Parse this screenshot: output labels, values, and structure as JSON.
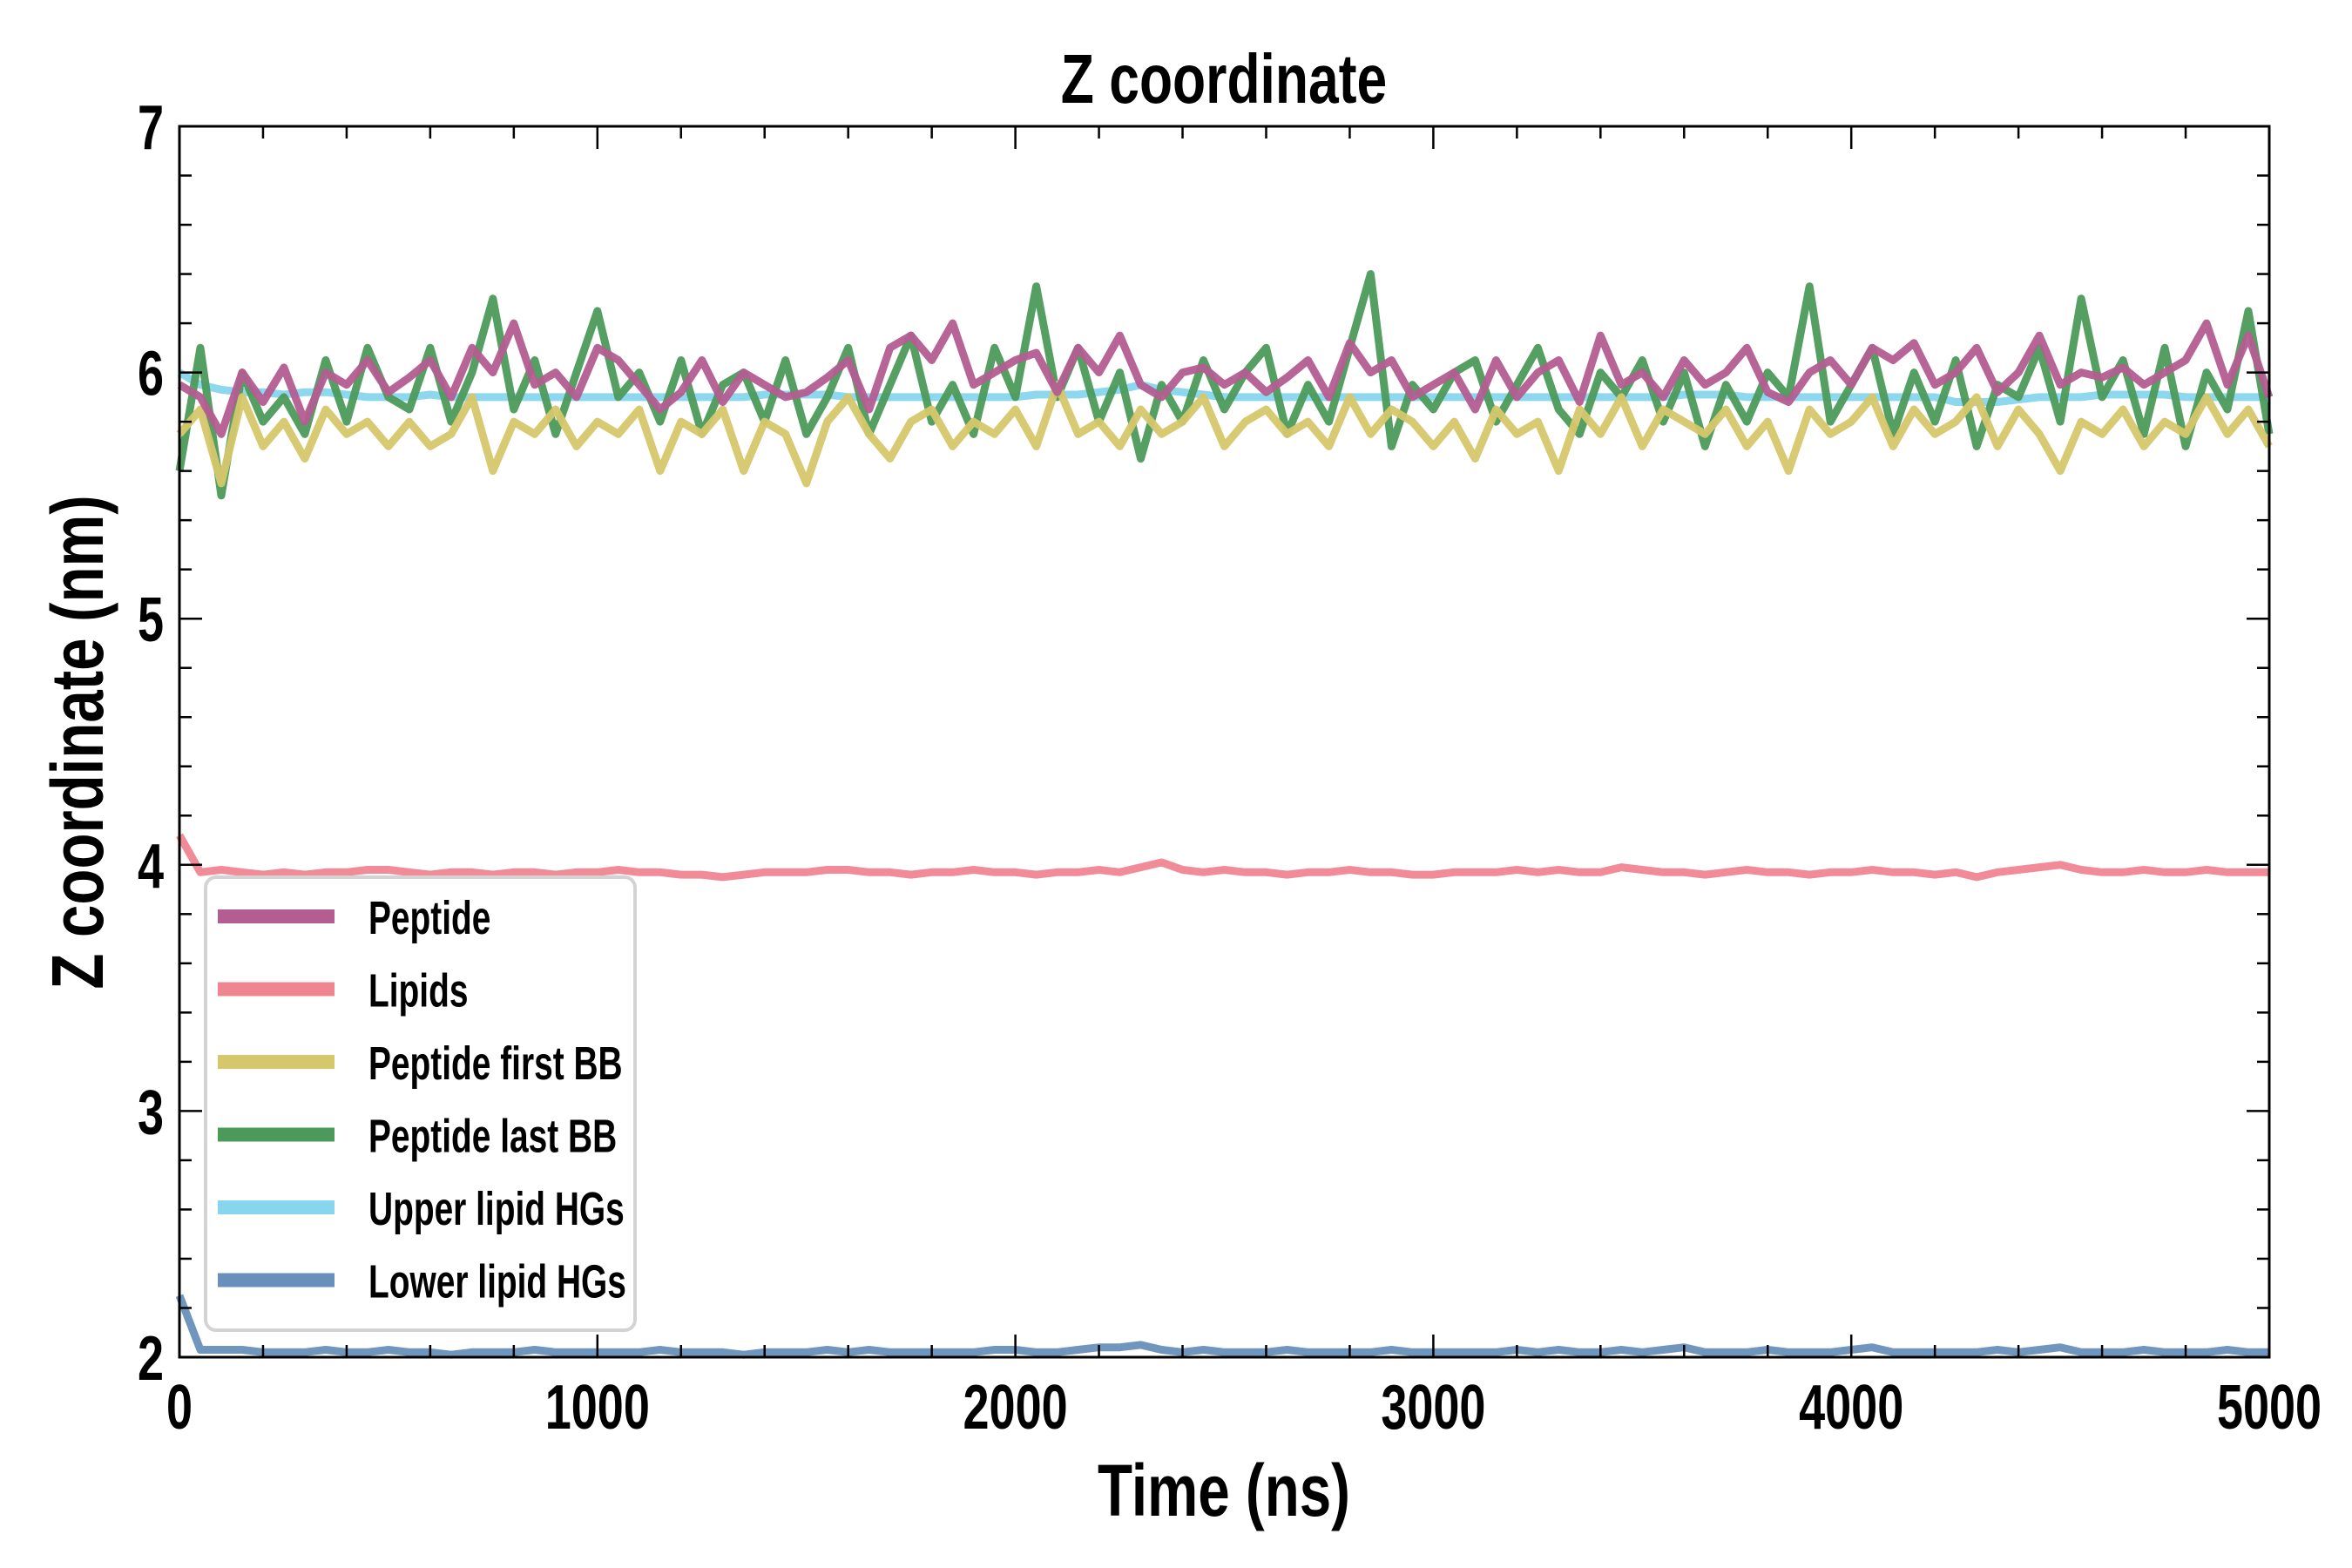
{
  "chart_data": {
    "type": "line",
    "title": "Z coordinate",
    "xlabel": "Time (ns)",
    "ylabel": "Z coordinate (nm)",
    "xlim": [
      0,
      5000
    ],
    "ylim": [
      2,
      7
    ],
    "x_ticks": [
      0,
      1000,
      2000,
      3000,
      4000,
      5000
    ],
    "x_tick_labels": [
      "0",
      "1000",
      "2000",
      "3000",
      "4000",
      "5000"
    ],
    "y_ticks": [
      2,
      3,
      4,
      5,
      6,
      7
    ],
    "y_tick_labels": [
      "2",
      "3",
      "4",
      "5",
      "6",
      "7"
    ],
    "x_minor_step": 200,
    "y_minor_step": 0.2,
    "grid": false,
    "legend_position": "lower-left",
    "x_step": 50,
    "series": [
      {
        "name": "Upper lipid HGs",
        "color": "#88d6ee",
        "values": [
          6.0,
          5.95,
          5.93,
          5.92,
          5.92,
          5.91,
          5.92,
          5.92,
          5.91,
          5.9,
          5.9,
          5.9,
          5.91,
          5.9,
          5.9,
          5.9,
          5.9,
          5.9,
          5.9,
          5.9,
          5.9,
          5.9,
          5.9,
          5.9,
          5.9,
          5.9,
          5.9,
          5.9,
          5.91,
          5.91,
          5.91,
          5.91,
          5.9,
          5.9,
          5.9,
          5.9,
          5.9,
          5.9,
          5.9,
          5.9,
          5.9,
          5.91,
          5.91,
          5.91,
          5.92,
          5.93,
          5.95,
          5.93,
          5.92,
          5.91,
          5.9,
          5.9,
          5.9,
          5.9,
          5.9,
          5.9,
          5.9,
          5.9,
          5.9,
          5.9,
          5.9,
          5.9,
          5.9,
          5.9,
          5.9,
          5.9,
          5.9,
          5.9,
          5.9,
          5.9,
          5.9,
          5.9,
          5.91,
          5.91,
          5.91,
          5.9,
          5.9,
          5.9,
          5.9,
          5.9,
          5.9,
          5.9,
          5.9,
          5.9,
          5.9,
          5.88,
          5.88,
          5.88,
          5.89,
          5.9,
          5.9,
          5.9,
          5.91,
          5.91,
          5.91,
          5.91,
          5.9,
          5.9,
          5.9,
          5.9,
          5.9
        ]
      },
      {
        "name": "Peptide last BB",
        "color": "#4c9a5a",
        "values": [
          5.6,
          6.1,
          5.5,
          6.0,
          5.8,
          5.9,
          5.75,
          6.05,
          5.8,
          6.1,
          5.9,
          5.85,
          6.1,
          5.8,
          6.0,
          6.3,
          5.85,
          6.05,
          5.75,
          6.0,
          6.25,
          5.9,
          6.0,
          5.8,
          6.05,
          5.75,
          5.95,
          6.0,
          5.8,
          6.05,
          5.75,
          5.9,
          6.1,
          5.75,
          5.95,
          6.15,
          5.8,
          5.95,
          5.75,
          6.1,
          5.9,
          6.35,
          5.9,
          6.1,
          5.8,
          6.0,
          5.65,
          5.95,
          5.8,
          6.05,
          5.85,
          6.0,
          6.1,
          5.75,
          5.95,
          5.8,
          6.1,
          6.4,
          5.7,
          5.95,
          5.85,
          6.0,
          6.05,
          5.8,
          5.95,
          6.1,
          5.85,
          5.75,
          6.0,
          5.9,
          6.05,
          5.8,
          6.0,
          5.7,
          5.95,
          5.8,
          6.0,
          5.9,
          6.35,
          5.8,
          5.95,
          6.1,
          5.75,
          6.0,
          5.8,
          6.05,
          5.7,
          5.95,
          5.9,
          6.1,
          5.8,
          6.3,
          5.9,
          6.05,
          5.75,
          6.1,
          5.7,
          6.0,
          5.85,
          6.25,
          5.75
        ]
      },
      {
        "name": "Peptide first BB",
        "color": "#d6c76a",
        "values": [
          5.75,
          5.85,
          5.55,
          5.9,
          5.7,
          5.8,
          5.65,
          5.85,
          5.75,
          5.8,
          5.7,
          5.8,
          5.7,
          5.75,
          5.9,
          5.6,
          5.8,
          5.75,
          5.85,
          5.7,
          5.8,
          5.75,
          5.85,
          5.6,
          5.8,
          5.75,
          5.85,
          5.6,
          5.8,
          5.75,
          5.55,
          5.8,
          5.9,
          5.75,
          5.65,
          5.8,
          5.85,
          5.7,
          5.8,
          5.75,
          5.85,
          5.7,
          5.95,
          5.75,
          5.8,
          5.7,
          5.85,
          5.75,
          5.8,
          5.9,
          5.7,
          5.8,
          5.85,
          5.75,
          5.8,
          5.7,
          5.9,
          5.75,
          5.85,
          5.8,
          5.7,
          5.8,
          5.65,
          5.85,
          5.75,
          5.8,
          5.6,
          5.85,
          5.75,
          5.9,
          5.7,
          5.85,
          5.8,
          5.75,
          5.85,
          5.7,
          5.8,
          5.6,
          5.85,
          5.75,
          5.8,
          5.9,
          5.7,
          5.85,
          5.75,
          5.8,
          5.9,
          5.7,
          5.85,
          5.75,
          5.6,
          5.8,
          5.75,
          5.85,
          5.7,
          5.8,
          5.75,
          5.9,
          5.75,
          5.85,
          5.7
        ]
      },
      {
        "name": "Peptide",
        "color": "#b35d91",
        "values": [
          5.95,
          5.9,
          5.75,
          6.0,
          5.88,
          6.02,
          5.8,
          6.0,
          5.95,
          6.05,
          5.92,
          5.98,
          6.05,
          5.9,
          6.1,
          6.0,
          6.2,
          5.95,
          6.0,
          5.9,
          6.1,
          6.05,
          5.95,
          5.85,
          5.92,
          6.05,
          5.88,
          6.0,
          5.95,
          5.9,
          5.92,
          5.98,
          6.05,
          5.85,
          6.1,
          6.15,
          6.05,
          6.2,
          5.95,
          6.0,
          6.05,
          6.08,
          5.92,
          6.1,
          6.0,
          6.15,
          5.95,
          5.9,
          6.0,
          6.02,
          5.95,
          6.0,
          5.92,
          5.98,
          6.05,
          5.9,
          6.12,
          6.0,
          6.05,
          5.9,
          5.95,
          6.0,
          5.85,
          6.05,
          5.9,
          6.0,
          6.05,
          5.88,
          6.15,
          5.95,
          6.0,
          5.9,
          6.05,
          5.95,
          6.0,
          6.1,
          5.92,
          5.88,
          6.0,
          6.05,
          5.95,
          6.1,
          6.05,
          6.12,
          5.95,
          6.0,
          6.1,
          5.92,
          6.0,
          6.15,
          5.95,
          6.0,
          5.98,
          6.02,
          5.95,
          6.0,
          6.05,
          6.2,
          5.95,
          6.15,
          5.9
        ]
      },
      {
        "name": "Lipids",
        "color": "#f08592",
        "values": [
          4.12,
          3.97,
          3.98,
          3.97,
          3.96,
          3.97,
          3.96,
          3.97,
          3.97,
          3.98,
          3.98,
          3.97,
          3.96,
          3.97,
          3.97,
          3.96,
          3.97,
          3.97,
          3.96,
          3.97,
          3.97,
          3.98,
          3.97,
          3.97,
          3.96,
          3.96,
          3.95,
          3.96,
          3.97,
          3.97,
          3.97,
          3.98,
          3.98,
          3.97,
          3.97,
          3.96,
          3.97,
          3.97,
          3.98,
          3.97,
          3.97,
          3.96,
          3.97,
          3.97,
          3.98,
          3.97,
          3.99,
          4.01,
          3.98,
          3.97,
          3.98,
          3.97,
          3.97,
          3.96,
          3.97,
          3.97,
          3.98,
          3.97,
          3.97,
          3.96,
          3.96,
          3.97,
          3.97,
          3.97,
          3.98,
          3.97,
          3.98,
          3.97,
          3.97,
          3.99,
          3.98,
          3.97,
          3.97,
          3.96,
          3.97,
          3.98,
          3.97,
          3.97,
          3.96,
          3.97,
          3.97,
          3.98,
          3.97,
          3.97,
          3.96,
          3.97,
          3.95,
          3.97,
          3.98,
          3.99,
          4.0,
          3.98,
          3.97,
          3.97,
          3.98,
          3.97,
          3.97,
          3.98,
          3.97,
          3.97,
          3.97
        ]
      },
      {
        "name": "Lower lipid HGs",
        "color": "#6890bb",
        "values": [
          2.25,
          2.03,
          2.03,
          2.03,
          2.02,
          2.02,
          2.02,
          2.03,
          2.02,
          2.02,
          2.03,
          2.02,
          2.02,
          2.01,
          2.02,
          2.02,
          2.02,
          2.03,
          2.02,
          2.02,
          2.02,
          2.02,
          2.02,
          2.03,
          2.02,
          2.02,
          2.02,
          2.01,
          2.02,
          2.02,
          2.02,
          2.03,
          2.02,
          2.03,
          2.02,
          2.02,
          2.02,
          2.02,
          2.02,
          2.03,
          2.03,
          2.02,
          2.02,
          2.03,
          2.04,
          2.04,
          2.05,
          2.03,
          2.02,
          2.03,
          2.02,
          2.02,
          2.02,
          2.03,
          2.02,
          2.02,
          2.02,
          2.02,
          2.03,
          2.02,
          2.02,
          2.02,
          2.02,
          2.02,
          2.03,
          2.02,
          2.03,
          2.02,
          2.02,
          2.03,
          2.02,
          2.03,
          2.04,
          2.02,
          2.02,
          2.02,
          2.03,
          2.02,
          2.02,
          2.02,
          2.03,
          2.04,
          2.02,
          2.02,
          2.02,
          2.02,
          2.02,
          2.03,
          2.02,
          2.03,
          2.04,
          2.02,
          2.02,
          2.02,
          2.03,
          2.02,
          2.02,
          2.02,
          2.03,
          2.02,
          2.02
        ]
      }
    ],
    "legend_order": [
      "Peptide",
      "Lipids",
      "Peptide first BB",
      "Peptide last BB",
      "Upper lipid HGs",
      "Lower lipid HGs"
    ]
  }
}
